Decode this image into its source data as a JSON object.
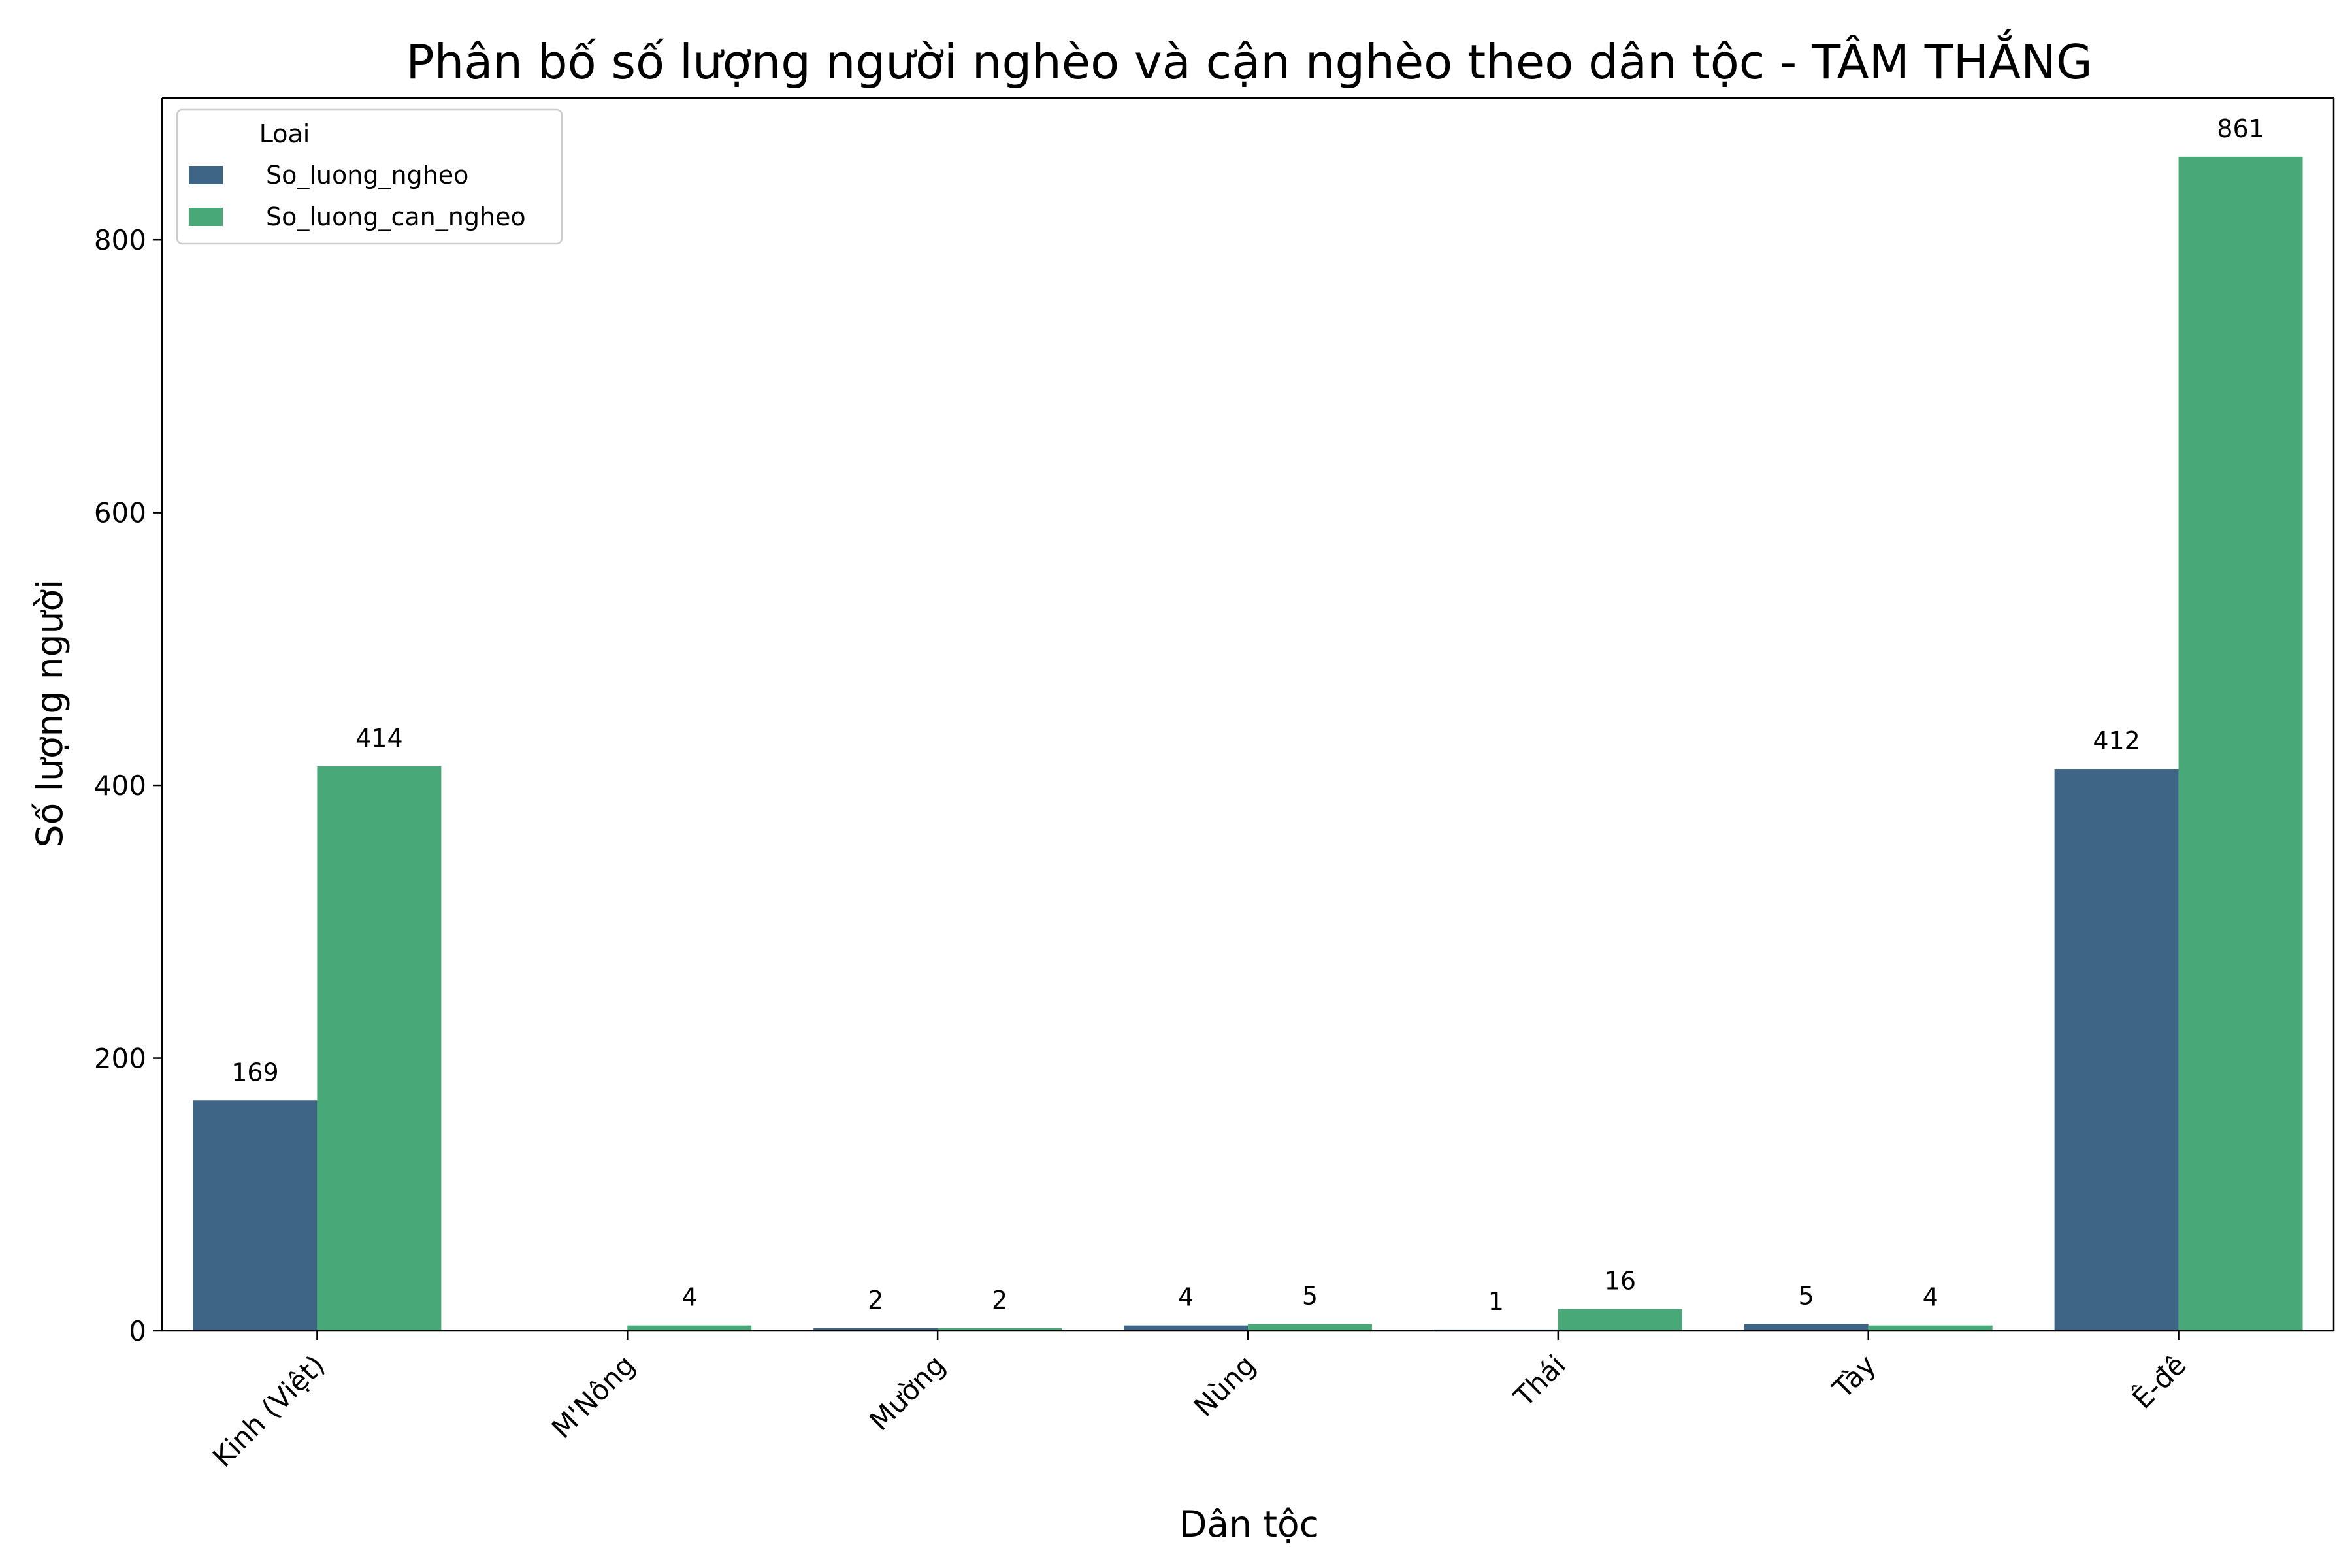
{
  "chart_data": {
    "type": "bar",
    "title": "Phân bố số lượng người nghèo và cận nghèo theo dân tộc - TÂM THẮNG",
    "xlabel": "Dân tộc",
    "ylabel": "Số lượng người",
    "categories": [
      "Kinh (Việt)",
      "M'Nông",
      "Mường",
      "Nùng",
      "Thái",
      "Tày",
      "Ê-đê"
    ],
    "series": [
      {
        "name": "So_luong_ngheo",
        "color": "#3e6585",
        "values": [
          169,
          0,
          2,
          4,
          1,
          5,
          412
        ],
        "labels": [
          "169",
          "",
          "2",
          "4",
          "1",
          "5",
          "412"
        ]
      },
      {
        "name": "So_luong_can_ngheo",
        "color": "#48a878",
        "values": [
          414,
          4,
          2,
          5,
          16,
          4,
          861
        ],
        "labels": [
          "414",
          "4",
          "2",
          "5",
          "16",
          "4",
          "861"
        ]
      }
    ],
    "ylim": [
      0,
      904.05
    ],
    "yticks": [
      0,
      200,
      400,
      600,
      800
    ],
    "grid": false,
    "legend": {
      "title": "Loai",
      "position": "top-left"
    }
  }
}
